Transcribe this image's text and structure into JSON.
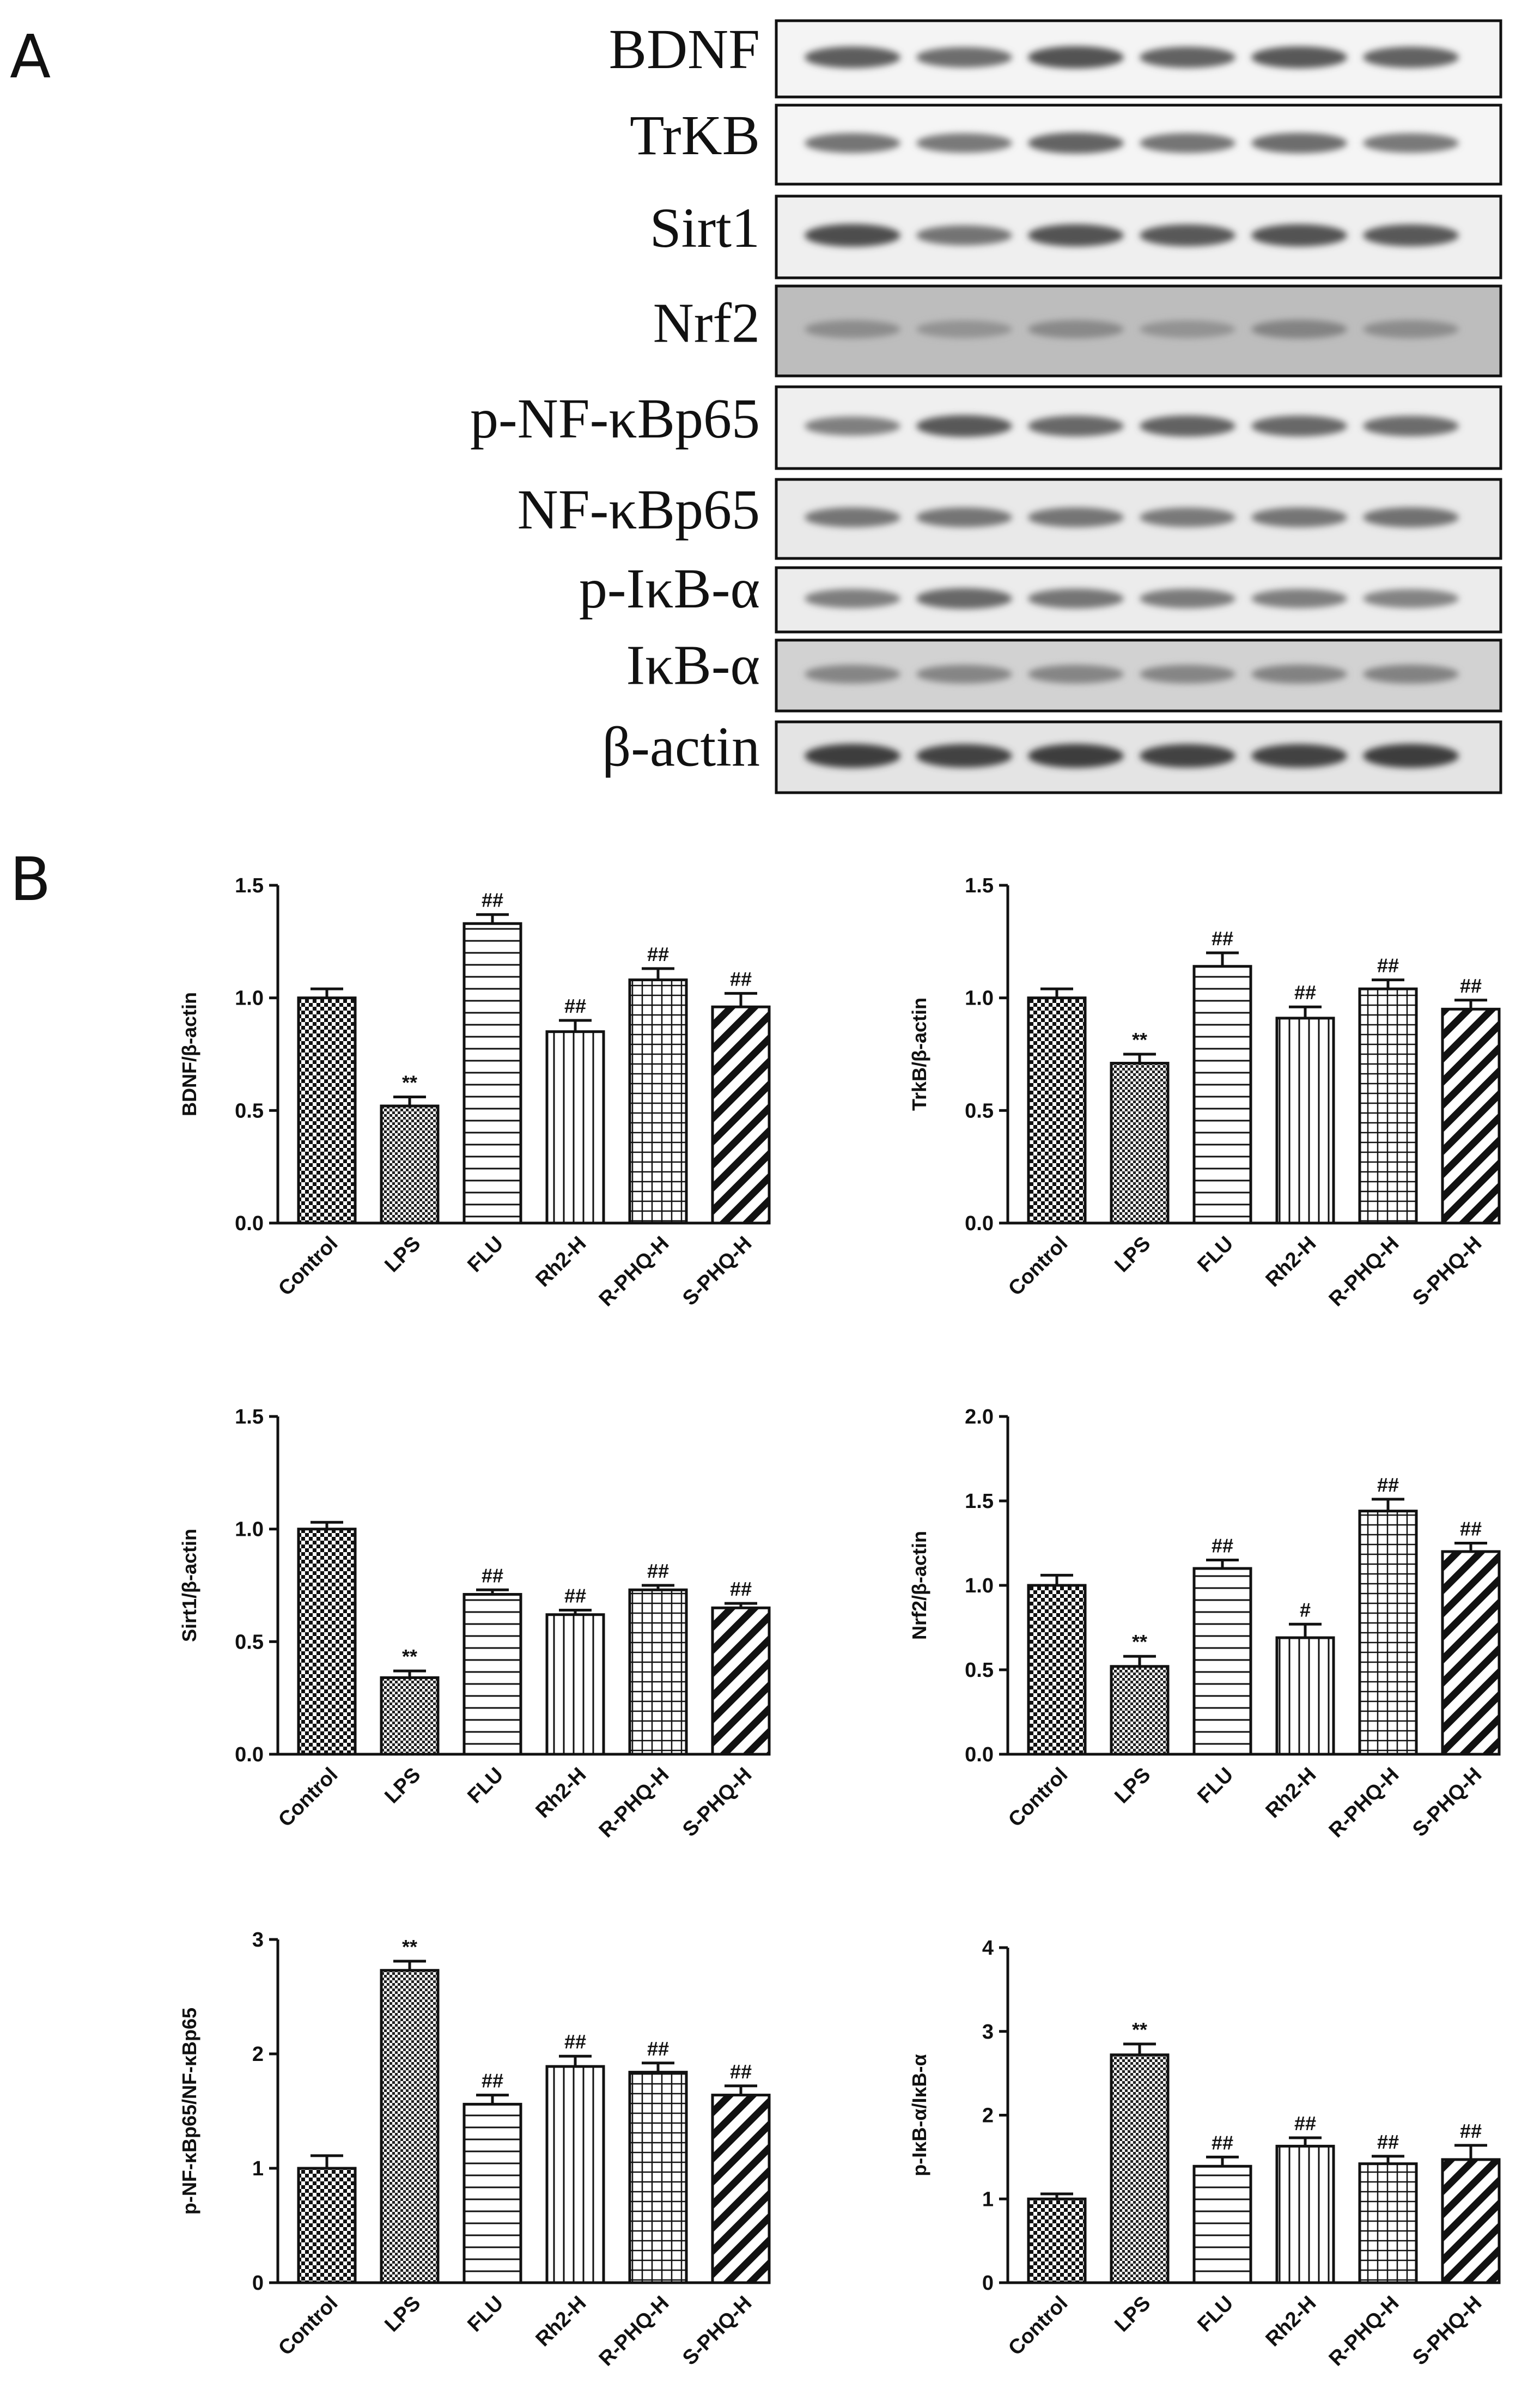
{
  "panels": {
    "a": "A",
    "b": "B"
  },
  "western_blot": {
    "bands": [
      "BDNF",
      "TrKB",
      "Sirt1",
      "Nrf2",
      "p-NF-κBp65",
      "NF-κBp65",
      "p-IκB-α",
      "IκB-α",
      "β-actin"
    ],
    "lanes": 6
  },
  "chart_data": [
    {
      "type": "bar",
      "categories": [
        "Control",
        "LPS",
        "FLU",
        "Rh2-H",
        "R-PHQ-H",
        "S-PHQ-H"
      ],
      "values": [
        1.0,
        0.52,
        1.33,
        0.85,
        1.08,
        0.96
      ],
      "errors": [
        0.04,
        0.04,
        0.04,
        0.05,
        0.05,
        0.06
      ],
      "annotations": [
        "",
        "**",
        "##",
        "##",
        "##",
        "##"
      ],
      "title": "",
      "xlabel": "",
      "ylabel": "BDNF/β-actin",
      "ylim": [
        0,
        1.5
      ],
      "yticks": [
        "0.0",
        "0.5",
        "1.0",
        "1.5"
      ],
      "grid": false
    },
    {
      "type": "bar",
      "categories": [
        "Control",
        "LPS",
        "FLU",
        "Rh2-H",
        "R-PHQ-H",
        "S-PHQ-H"
      ],
      "values": [
        1.0,
        0.71,
        1.14,
        0.91,
        1.04,
        0.95
      ],
      "errors": [
        0.04,
        0.04,
        0.06,
        0.05,
        0.04,
        0.04
      ],
      "annotations": [
        "",
        "**",
        "##",
        "##",
        "##",
        "##"
      ],
      "title": "",
      "xlabel": "",
      "ylabel": "TrkB/β-actin",
      "ylim": [
        0,
        1.5
      ],
      "yticks": [
        "0.0",
        "0.5",
        "1.0",
        "1.5"
      ],
      "grid": false
    },
    {
      "type": "bar",
      "categories": [
        "Control",
        "LPS",
        "FLU",
        "Rh2-H",
        "R-PHQ-H",
        "S-PHQ-H"
      ],
      "values": [
        1.0,
        0.34,
        0.71,
        0.62,
        0.73,
        0.65
      ],
      "errors": [
        0.03,
        0.03,
        0.02,
        0.02,
        0.02,
        0.02
      ],
      "annotations": [
        "",
        "**",
        "##",
        "##",
        "##",
        "##"
      ],
      "title": "",
      "xlabel": "",
      "ylabel": "Sirt1/β-actin",
      "ylim": [
        0,
        1.5
      ],
      "yticks": [
        "0.0",
        "0.5",
        "1.0",
        "1.5"
      ],
      "grid": false
    },
    {
      "type": "bar",
      "categories": [
        "Control",
        "LPS",
        "FLU",
        "Rh2-H",
        "R-PHQ-H",
        "S-PHQ-H"
      ],
      "values": [
        1.0,
        0.52,
        1.1,
        0.69,
        1.44,
        1.2
      ],
      "errors": [
        0.06,
        0.06,
        0.05,
        0.08,
        0.07,
        0.05
      ],
      "annotations": [
        "",
        "**",
        "##",
        "#",
        "##",
        "##"
      ],
      "title": "",
      "xlabel": "",
      "ylabel": "Nrf2/β-actin",
      "ylim": [
        0,
        2.0
      ],
      "yticks": [
        "0.0",
        "0.5",
        "1.0",
        "1.5",
        "2.0"
      ],
      "grid": false
    },
    {
      "type": "bar",
      "categories": [
        "Control",
        "LPS",
        "FLU",
        "Rh2-H",
        "R-PHQ-H",
        "S-PHQ-H"
      ],
      "values": [
        1.0,
        2.73,
        1.56,
        1.89,
        1.84,
        1.64
      ],
      "errors": [
        0.11,
        0.08,
        0.08,
        0.09,
        0.08,
        0.08
      ],
      "annotations": [
        "",
        "**",
        "##",
        "##",
        "##",
        "##"
      ],
      "title": "",
      "xlabel": "",
      "ylabel": "p-NF-κBp65/NF-κBp65",
      "ylim": [
        0,
        3
      ],
      "yticks": [
        "0",
        "1",
        "2",
        "3"
      ],
      "grid": false
    },
    {
      "type": "bar",
      "categories": [
        "Control",
        "LPS",
        "FLU",
        "Rh2-H",
        "R-PHQ-H",
        "S-PHQ-H"
      ],
      "values": [
        1.0,
        2.72,
        1.39,
        1.63,
        1.42,
        1.47
      ],
      "errors": [
        0.06,
        0.13,
        0.11,
        0.1,
        0.09,
        0.17
      ],
      "annotations": [
        "",
        "**",
        "##",
        "##",
        "##",
        "##"
      ],
      "title": "",
      "xlabel": "",
      "ylabel": "p-IκB-α/IκB-α",
      "ylim": [
        0,
        4
      ],
      "yticks": [
        "0",
        "1",
        "2",
        "3",
        "4"
      ],
      "grid": false
    }
  ]
}
